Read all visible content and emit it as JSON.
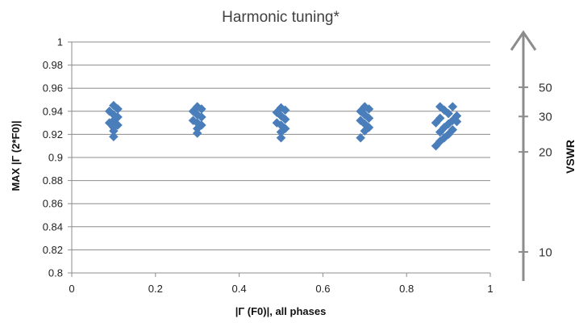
{
  "chart_data": {
    "type": "scatter",
    "title": "Harmonic tuning*",
    "xlabel": "|Γ (F0)|, all phases",
    "ylabel": "MAX |Γ (2*F0)|",
    "xlim": [
      0,
      1
    ],
    "ylim": [
      0.8,
      1
    ],
    "x_ticks": [
      "0",
      "0.2",
      "0.4",
      "0.6",
      "0.8",
      "1"
    ],
    "y_ticks": [
      "0.8",
      "0.82",
      "0.84",
      "0.86",
      "0.88",
      "0.9",
      "0.92",
      "0.94",
      "0.96",
      "0.98",
      "1"
    ],
    "grid": "horizontal",
    "marker": "diamond",
    "marker_color": "#4A7EBB",
    "series": [
      {
        "values": [
          [
            0.1,
            0.945
          ],
          [
            0.11,
            0.942
          ],
          [
            0.09,
            0.94
          ],
          [
            0.1,
            0.937
          ],
          [
            0.11,
            0.935
          ],
          [
            0.1,
            0.932
          ],
          [
            0.09,
            0.93
          ],
          [
            0.11,
            0.928
          ],
          [
            0.1,
            0.926
          ],
          [
            0.1,
            0.923
          ],
          [
            0.1,
            0.918
          ],
          [
            0.3,
            0.944
          ],
          [
            0.31,
            0.942
          ],
          [
            0.29,
            0.94
          ],
          [
            0.3,
            0.937
          ],
          [
            0.31,
            0.935
          ],
          [
            0.29,
            0.932
          ],
          [
            0.3,
            0.93
          ],
          [
            0.31,
            0.928
          ],
          [
            0.3,
            0.925
          ],
          [
            0.3,
            0.921
          ],
          [
            0.5,
            0.943
          ],
          [
            0.51,
            0.941
          ],
          [
            0.49,
            0.939
          ],
          [
            0.5,
            0.936
          ],
          [
            0.51,
            0.933
          ],
          [
            0.49,
            0.93
          ],
          [
            0.5,
            0.928
          ],
          [
            0.51,
            0.925
          ],
          [
            0.5,
            0.922
          ],
          [
            0.5,
            0.917
          ],
          [
            0.7,
            0.944
          ],
          [
            0.71,
            0.942
          ],
          [
            0.69,
            0.94
          ],
          [
            0.7,
            0.937
          ],
          [
            0.71,
            0.934
          ],
          [
            0.69,
            0.932
          ],
          [
            0.7,
            0.929
          ],
          [
            0.71,
            0.926
          ],
          [
            0.7,
            0.923
          ],
          [
            0.69,
            0.917
          ],
          [
            0.88,
            0.944
          ],
          [
            0.91,
            0.944
          ],
          [
            0.89,
            0.941
          ],
          [
            0.9,
            0.938
          ],
          [
            0.92,
            0.936
          ],
          [
            0.88,
            0.934
          ],
          [
            0.91,
            0.932
          ],
          [
            0.87,
            0.93
          ],
          [
            0.9,
            0.929
          ],
          [
            0.92,
            0.931
          ],
          [
            0.89,
            0.926
          ],
          [
            0.91,
            0.924
          ],
          [
            0.88,
            0.922
          ],
          [
            0.9,
            0.92
          ],
          [
            0.89,
            0.917
          ],
          [
            0.88,
            0.914
          ],
          [
            0.87,
            0.91
          ]
        ]
      }
    ],
    "secondary_axis": {
      "label": "VSWR",
      "ticks": [
        {
          "label": "50",
          "gamma": 0.9608
        },
        {
          "label": "30",
          "gamma": 0.9355
        },
        {
          "label": "20",
          "gamma": 0.9048
        },
        {
          "label": "10",
          "gamma": 0.8182
        }
      ],
      "color": "#8C8C8C"
    }
  }
}
